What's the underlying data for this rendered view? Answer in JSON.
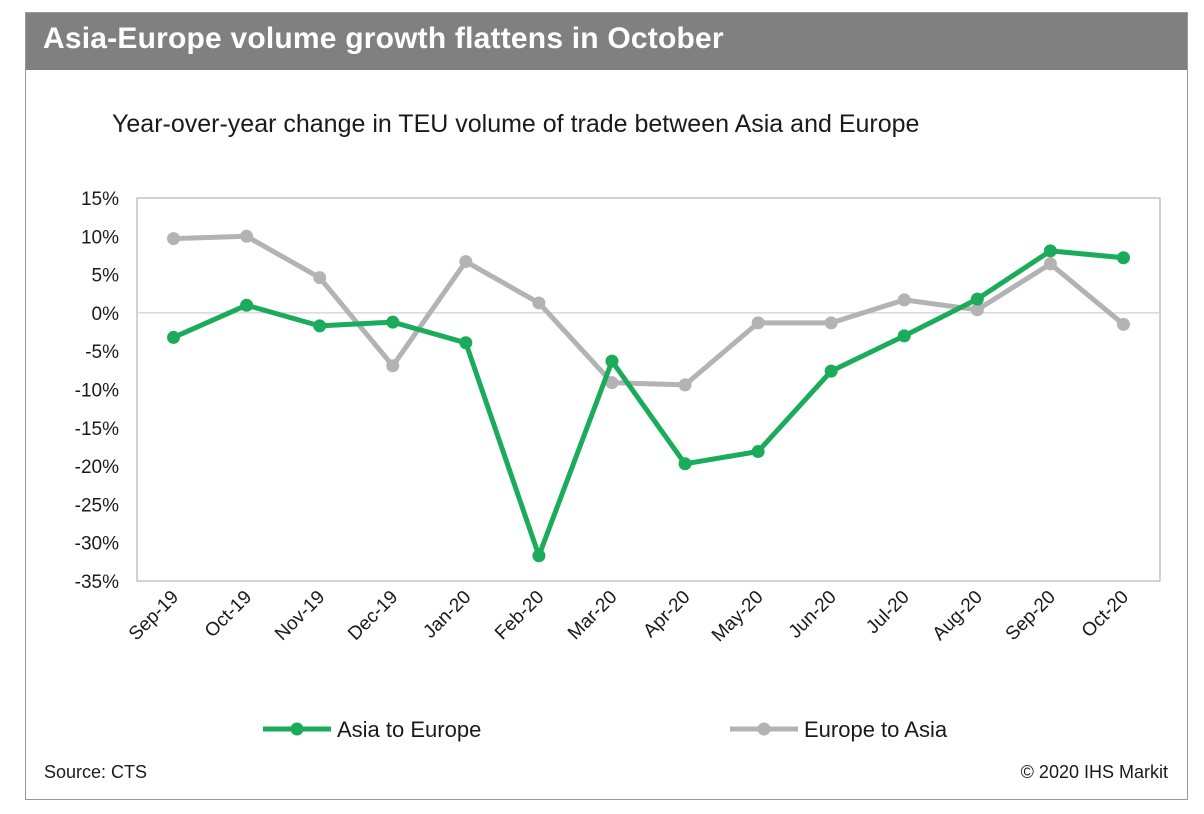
{
  "header": {
    "title": "Asia-Europe volume growth flattens in October"
  },
  "footer": {
    "source": "Source: CTS",
    "copyright": "© 2020 IHS Markit"
  },
  "colors": {
    "asia_to_europe": "#1aab5b",
    "europe_to_asia": "#b3b3b3",
    "header_bg": "#808080"
  },
  "chart_data": {
    "type": "line",
    "title": "Year-over-year change in TEU volume of trade between Asia and Europe",
    "xlabel": "",
    "ylabel": "",
    "ylim": [
      -35,
      15
    ],
    "yticks": [
      15,
      10,
      5,
      0,
      -5,
      -10,
      -15,
      -20,
      -25,
      -30,
      -35
    ],
    "ytick_labels": [
      "15%",
      "10%",
      "5%",
      "0%",
      "-5%",
      "-10%",
      "-15%",
      "-20%",
      "-25%",
      "-30%",
      "-35%"
    ],
    "categories": [
      "Sep-19",
      "Oct-19",
      "Nov-19",
      "Dec-19",
      "Jan-20",
      "Feb-20",
      "Mar-20",
      "Apr-20",
      "May-20",
      "Jun-20",
      "Jul-20",
      "Aug-20",
      "Sep-20",
      "Oct-20"
    ],
    "series": [
      {
        "name": "Asia to Europe",
        "color": "#1aab5b",
        "values": [
          -3.2,
          1.0,
          -1.7,
          -1.2,
          -3.9,
          -31.7,
          -6.3,
          -19.7,
          -18.1,
          -7.6,
          -3.0,
          1.8,
          8.1,
          7.2
        ]
      },
      {
        "name": "Europe to Asia",
        "color": "#b3b3b3",
        "values": [
          9.7,
          10.0,
          4.6,
          -6.9,
          6.7,
          1.3,
          -9.1,
          -9.4,
          -1.3,
          -1.3,
          1.7,
          0.4,
          6.4,
          -1.5
        ]
      }
    ],
    "legend_position": "bottom",
    "grid": false
  }
}
